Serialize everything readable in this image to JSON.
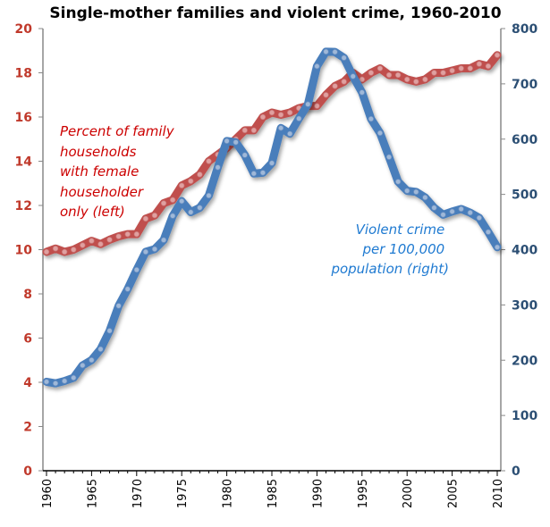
{
  "chart_data": {
    "type": "line",
    "title": "Single-mother families and violent crime, 1960-2010",
    "x": [
      1960,
      1961,
      1962,
      1963,
      1964,
      1965,
      1966,
      1967,
      1968,
      1969,
      1970,
      1971,
      1972,
      1973,
      1974,
      1975,
      1976,
      1977,
      1978,
      1979,
      1980,
      1981,
      1982,
      1983,
      1984,
      1985,
      1986,
      1987,
      1988,
      1989,
      1990,
      1991,
      1992,
      1993,
      1994,
      1995,
      1996,
      1997,
      1998,
      1999,
      2000,
      2001,
      2002,
      2003,
      2004,
      2005,
      2006,
      2007,
      2008,
      2009,
      2010
    ],
    "xticks": [
      "1960",
      "1965",
      "1970",
      "1975",
      "1980",
      "1985",
      "1990",
      "1995",
      "2000",
      "2005",
      "2010"
    ],
    "xlim": [
      1960,
      2010
    ],
    "left_axis": {
      "range": [
        0,
        20
      ],
      "ticks": [
        "0",
        "2",
        "4",
        "6",
        "8",
        "10",
        "12",
        "14",
        "16",
        "18",
        "20"
      ],
      "color": "#c0392b"
    },
    "right_axis": {
      "range": [
        0,
        800
      ],
      "ticks": [
        "0",
        "100",
        "200",
        "300",
        "400",
        "500",
        "600",
        "700",
        "800"
      ],
      "color": "#2c4f74"
    },
    "grid": false,
    "series": [
      {
        "name": "Percent of family households with female householder only (left)",
        "axis": "left",
        "color": "#c0504d",
        "label_lines": [
          "Percent of family",
          "households",
          "with female",
          "householder",
          "only (left)"
        ],
        "values": [
          9.9,
          10.05,
          9.9,
          10.0,
          10.2,
          10.4,
          10.25,
          10.45,
          10.6,
          10.7,
          10.7,
          11.4,
          11.55,
          12.1,
          12.25,
          12.9,
          13.1,
          13.4,
          14.0,
          14.3,
          14.6,
          15.0,
          15.4,
          15.4,
          16.0,
          16.2,
          16.1,
          16.2,
          16.4,
          16.5,
          16.5,
          17.0,
          17.4,
          17.6,
          18.0,
          17.7,
          18.0,
          18.2,
          17.9,
          17.9,
          17.7,
          17.6,
          17.7,
          18.0,
          18.0,
          18.1,
          18.2,
          18.2,
          18.4,
          18.3,
          18.8
        ]
      },
      {
        "name": "Violent crime per 100,000 population (right)",
        "axis": "right",
        "color": "#4a7ebb",
        "label_lines": [
          "Violent crime",
          "per 100,000",
          "population  (right)"
        ],
        "values": [
          160.9,
          158.1,
          162.3,
          168.2,
          190.6,
          200.2,
          220.0,
          253.2,
          298.4,
          328.7,
          363.5,
          396.0,
          401.0,
          417.4,
          461.1,
          487.8,
          467.8,
          475.9,
          497.8,
          548.9,
          596.6,
          594.3,
          571.1,
          537.7,
          539.2,
          556.6,
          620.1,
          609.7,
          637.2,
          663.1,
          731.8,
          758.2,
          757.7,
          747.1,
          713.6,
          684.5,
          636.6,
          611.0,
          567.6,
          523.0,
          506.5,
          504.5,
          494.4,
          475.8,
          463.2,
          469.0,
          473.6,
          466.9,
          457.5,
          431.9,
          404.5
        ]
      }
    ]
  }
}
